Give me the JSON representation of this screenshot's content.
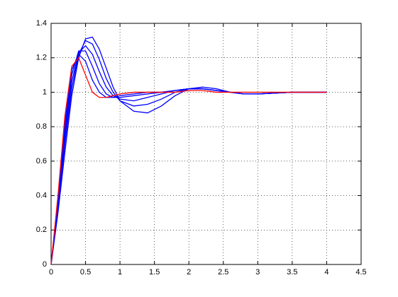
{
  "chart_data": {
    "type": "line",
    "x": [
      0,
      0.1,
      0.2,
      0.3,
      0.4,
      0.5,
      0.6,
      0.7,
      0.8,
      0.9,
      1.0,
      1.2,
      1.4,
      1.6,
      1.8,
      2.0,
      2.2,
      2.4,
      2.6,
      2.8,
      3.0,
      3.5,
      4.0
    ],
    "series": [
      {
        "color": "#0000ff",
        "values": [
          0,
          0.3,
          0.65,
          0.98,
          1.2,
          1.31,
          1.32,
          1.25,
          1.14,
          1.03,
          0.95,
          0.89,
          0.88,
          0.92,
          0.98,
          1.02,
          1.03,
          1.02,
          1.0,
          0.99,
          0.99,
          1.0,
          1.0
        ]
      },
      {
        "color": "#0000ff",
        "values": [
          0,
          0.32,
          0.7,
          1.02,
          1.22,
          1.3,
          1.28,
          1.19,
          1.08,
          1.0,
          0.95,
          0.92,
          0.93,
          0.96,
          1.0,
          1.02,
          1.02,
          1.01,
          1.0,
          0.99,
          0.99,
          1.0,
          1.0
        ]
      },
      {
        "color": "#0000ff",
        "values": [
          0,
          0.34,
          0.74,
          1.06,
          1.23,
          1.27,
          1.22,
          1.12,
          1.03,
          0.98,
          0.96,
          0.95,
          0.97,
          0.99,
          1.01,
          1.02,
          1.02,
          1.01,
          1.0,
          0.99,
          0.99,
          1.0,
          1.0
        ]
      },
      {
        "color": "#0000ff",
        "values": [
          0,
          0.36,
          0.78,
          1.1,
          1.24,
          1.24,
          1.15,
          1.05,
          0.99,
          0.97,
          0.97,
          0.98,
          0.99,
          1.0,
          1.01,
          1.02,
          1.02,
          1.01,
          1.0,
          0.99,
          0.99,
          1.0,
          1.0
        ]
      },
      {
        "color": "#0000ff",
        "values": [
          0,
          0.38,
          0.82,
          1.13,
          1.22,
          1.18,
          1.07,
          1.0,
          0.97,
          0.97,
          0.98,
          0.99,
          1.0,
          1.0,
          1.01,
          1.02,
          1.02,
          1.01,
          1.0,
          0.99,
          0.99,
          1.0,
          1.0
        ]
      },
      {
        "color": "#ff0000",
        "values": [
          0,
          0.4,
          0.86,
          1.15,
          1.2,
          1.1,
          1.0,
          0.97,
          0.97,
          0.98,
          0.99,
          1.0,
          1.0,
          1.0,
          1.0,
          1.01,
          1.01,
          1.0,
          1.0,
          1.0,
          1.0,
          1.0,
          1.0
        ]
      }
    ],
    "xlim": [
      0,
      4.5
    ],
    "ylim": [
      0,
      1.4
    ],
    "xticks": [
      0,
      0.5,
      1,
      1.5,
      2,
      2.5,
      3,
      3.5,
      4,
      4.5
    ],
    "yticks": [
      0,
      0.2,
      0.4,
      0.6,
      0.8,
      1,
      1.2,
      1.4
    ],
    "grid": true
  }
}
